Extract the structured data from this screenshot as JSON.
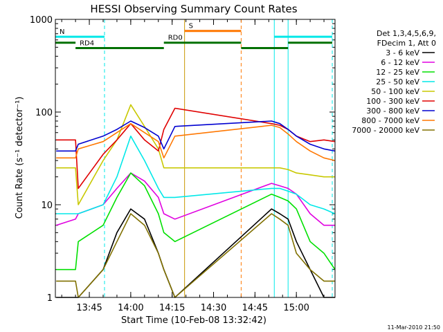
{
  "chart_data": {
    "type": "line",
    "title": "HESSI Observing Summary Count Rates",
    "xlabel": "Start Time (10-Feb-08 13:32:42)",
    "ylabel": "Count Rate (s⁻¹ detector⁻¹)",
    "y_scale": "log",
    "ylim": [
      1,
      1000
    ],
    "xlim": [
      "13:32:42",
      "15:14:00"
    ],
    "x_ticks": [
      "13:45",
      "14:00",
      "14:15",
      "14:30",
      "14:45",
      "15:00"
    ],
    "y_ticks": [
      "1",
      "10",
      "100",
      "1000"
    ],
    "timestamp": "11-Mar-2010 21:50",
    "legend": {
      "placement": "right",
      "header": [
        "Det 1,3,4,5,6,9,",
        "FDecim 1, Att 0"
      ]
    },
    "series": [
      {
        "name": "3 - 6 keV",
        "color": "#000000",
        "x": [
          "13:33",
          "13:40",
          "13:41",
          "13:50",
          "13:55",
          "14:00",
          "14:05",
          "14:10",
          "14:12",
          "14:16",
          "14:51",
          "14:54",
          "14:57",
          "15:00",
          "15:05",
          "15:10",
          "15:14"
        ],
        "y": [
          1,
          1,
          1,
          2,
          5,
          9,
          7,
          3,
          2,
          1,
          9,
          8,
          7,
          4,
          2,
          1,
          1
        ]
      },
      {
        "name": "6 - 12 keV",
        "color": "#e000e0",
        "x": [
          "13:33",
          "13:40",
          "13:41",
          "13:50",
          "13:55",
          "14:00",
          "14:05",
          "14:10",
          "14:12",
          "14:16",
          "14:51",
          "14:54",
          "14:57",
          "15:00",
          "15:05",
          "15:10",
          "15:14"
        ],
        "y": [
          6,
          7,
          8,
          10,
          15,
          22,
          18,
          12,
          8,
          7,
          17,
          16,
          15,
          13,
          8,
          6,
          6
        ]
      },
      {
        "name": "12 - 25 keV",
        "color": "#00e000",
        "x": [
          "13:33",
          "13:40",
          "13:41",
          "13:50",
          "13:55",
          "14:00",
          "14:05",
          "14:10",
          "14:12",
          "14:16",
          "14:51",
          "14:54",
          "14:57",
          "15:00",
          "15:05",
          "15:10",
          "15:14"
        ],
        "y": [
          2,
          2,
          4,
          6,
          12,
          22,
          16,
          8,
          5,
          4,
          13,
          12,
          11,
          9,
          4,
          3,
          2
        ]
      },
      {
        "name": "25 - 50 keV",
        "color": "#00e8e8",
        "x": [
          "13:33",
          "13:40",
          "13:41",
          "13:50",
          "13:55",
          "14:00",
          "14:05",
          "14:10",
          "14:12",
          "14:16",
          "14:51",
          "14:54",
          "14:57",
          "15:00",
          "15:05",
          "15:10",
          "15:14"
        ],
        "y": [
          8,
          8,
          8,
          10,
          20,
          55,
          30,
          15,
          12,
          12,
          15,
          15,
          14,
          13,
          10,
          9,
          8
        ]
      },
      {
        "name": "50 - 100 keV",
        "color": "#c8c800",
        "x": [
          "13:33",
          "13:40",
          "13:41",
          "13:50",
          "13:55",
          "14:00",
          "14:05",
          "14:10",
          "14:12",
          "14:16",
          "14:51",
          "14:54",
          "14:57",
          "15:00",
          "15:05",
          "15:10",
          "15:14"
        ],
        "y": [
          25,
          25,
          10,
          30,
          50,
          120,
          70,
          40,
          25,
          25,
          25,
          25,
          24,
          22,
          21,
          20,
          20
        ]
      },
      {
        "name": "100 - 300 keV",
        "color": "#e00000",
        "x": [
          "13:33",
          "13:40",
          "13:41",
          "13:50",
          "13:55",
          "14:00",
          "14:05",
          "14:10",
          "14:12",
          "14:16",
          "14:51",
          "14:54",
          "14:57",
          "15:00",
          "15:05",
          "15:10",
          "15:14"
        ],
        "y": [
          50,
          50,
          15,
          35,
          50,
          75,
          50,
          38,
          65,
          110,
          75,
          72,
          65,
          55,
          48,
          50,
          48
        ]
      },
      {
        "name": "300 - 800 keV",
        "color": "#0000d0",
        "x": [
          "13:33",
          "13:40",
          "13:41",
          "13:50",
          "13:55",
          "14:00",
          "14:05",
          "14:10",
          "14:12",
          "14:16",
          "14:51",
          "14:54",
          "14:57",
          "15:00",
          "15:05",
          "15:10",
          "15:14"
        ],
        "y": [
          38,
          38,
          45,
          55,
          65,
          80,
          68,
          55,
          40,
          70,
          80,
          75,
          65,
          55,
          45,
          40,
          38
        ]
      },
      {
        "name": "800 - 7000 keV",
        "color": "#ff7700",
        "x": [
          "13:33",
          "13:40",
          "13:41",
          "13:50",
          "13:55",
          "14:00",
          "14:05",
          "14:10",
          "14:12",
          "14:16",
          "14:51",
          "14:54",
          "14:57",
          "15:00",
          "15:05",
          "15:10",
          "15:14"
        ],
        "y": [
          32,
          32,
          40,
          48,
          60,
          75,
          60,
          48,
          32,
          55,
          72,
          68,
          58,
          48,
          38,
          32,
          30
        ]
      },
      {
        "name": "7000 - 20000 keV",
        "color": "#807000",
        "x": [
          "13:33",
          "13:40",
          "13:41",
          "13:50",
          "13:55",
          "14:00",
          "14:05",
          "14:10",
          "14:12",
          "14:16",
          "14:51",
          "14:54",
          "14:57",
          "15:00",
          "15:05",
          "15:10",
          "15:14"
        ],
        "y": [
          1.5,
          1.5,
          1,
          2,
          4,
          8,
          6,
          3,
          2,
          1,
          8,
          7,
          6,
          3,
          2,
          1.5,
          1.5
        ]
      }
    ],
    "annotations": [
      {
        "label": "N",
        "x_start": "13:32:42",
        "x_end": "13:50:30",
        "y": 650,
        "color": "#00e8e8"
      },
      {
        "label": "",
        "x_start": "14:52:00",
        "x_end": "15:13:00",
        "y": 650,
        "color": "#00e8e8"
      },
      {
        "label": "S",
        "x_start": "14:19:30",
        "x_end": "14:40:00",
        "y": 750,
        "color": "#ff7700"
      },
      {
        "label": "RD0",
        "x_start": "14:12:00",
        "x_end": "14:40:00",
        "y": 560,
        "color": "#007000"
      },
      {
        "label": "RD4",
        "x_start": "13:40:00",
        "x_end": "14:12:00",
        "y": 490,
        "color": "#007000"
      },
      {
        "label": "",
        "x_start": "13:32:42",
        "x_end": "13:40:00",
        "y": 560,
        "color": "#007000"
      },
      {
        "label": "",
        "x_start": "14:40:00",
        "x_end": "14:57:00",
        "y": 490,
        "color": "#007000"
      },
      {
        "label": "",
        "x_start": "14:57:00",
        "x_end": "15:13:00",
        "y": 560,
        "color": "#007000"
      }
    ],
    "vertical_markers": [
      {
        "x": "13:50:30",
        "style": "dashed",
        "color": "#00e8e8"
      },
      {
        "x": "14:19:30",
        "style": "solid",
        "color": "#c89600"
      },
      {
        "x": "14:40:00",
        "style": "dashed",
        "color": "#ff7700"
      },
      {
        "x": "14:52:00",
        "style": "solid",
        "color": "#00e8e8"
      },
      {
        "x": "14:57:00",
        "style": "solid",
        "color": "#00e8e8"
      },
      {
        "x": "15:13:00",
        "style": "dashed",
        "color": "#00e8e8"
      }
    ]
  }
}
